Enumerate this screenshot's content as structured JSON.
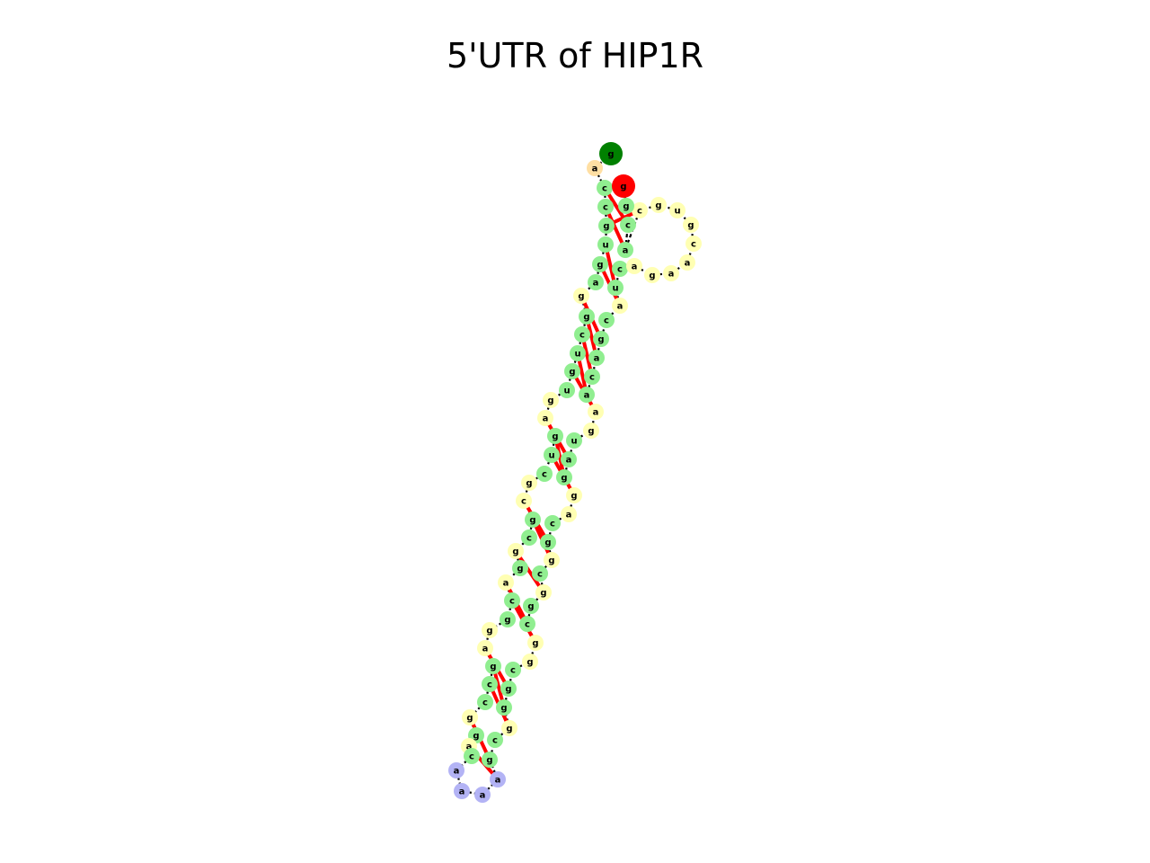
{
  "title": "5'UTR of HIP1R",
  "colors": {
    "stem": "#90ee90",
    "loop": "#ffffb3",
    "hairpin": "#b3b3f5",
    "dangling": "#ffdfa3",
    "five_prime": "#008000",
    "three_prime": "#ff0000",
    "backbone": "#000000",
    "pair": "#ff0000"
  },
  "nucleotides": [
    {
      "base": "g",
      "type": "five_prime"
    },
    {
      "base": "a",
      "type": "dangling"
    },
    {
      "base": "c",
      "type": "stem"
    },
    {
      "base": "c",
      "type": "stem"
    },
    {
      "base": "g",
      "type": "stem"
    },
    {
      "base": "u",
      "type": "stem"
    },
    {
      "base": "g",
      "type": "stem"
    },
    {
      "base": "a",
      "type": "stem"
    },
    {
      "base": "g",
      "type": "loop"
    },
    {
      "base": "g",
      "type": "stem"
    },
    {
      "base": "c",
      "type": "stem"
    },
    {
      "base": "u",
      "type": "stem"
    },
    {
      "base": "g",
      "type": "stem"
    },
    {
      "base": "u",
      "type": "stem"
    },
    {
      "base": "g",
      "type": "loop"
    },
    {
      "base": "a",
      "type": "loop"
    },
    {
      "base": "g",
      "type": "stem"
    },
    {
      "base": "u",
      "type": "stem"
    },
    {
      "base": "c",
      "type": "stem"
    },
    {
      "base": "g",
      "type": "loop"
    },
    {
      "base": "c",
      "type": "loop"
    },
    {
      "base": "g",
      "type": "stem"
    },
    {
      "base": "c",
      "type": "stem"
    },
    {
      "base": "g",
      "type": "loop"
    },
    {
      "base": "g",
      "type": "stem"
    },
    {
      "base": "a",
      "type": "loop"
    },
    {
      "base": "c",
      "type": "stem"
    },
    {
      "base": "g",
      "type": "stem"
    },
    {
      "base": "g",
      "type": "loop"
    },
    {
      "base": "a",
      "type": "loop"
    },
    {
      "base": "g",
      "type": "stem"
    },
    {
      "base": "c",
      "type": "stem"
    },
    {
      "base": "c",
      "type": "stem"
    },
    {
      "base": "g",
      "type": "loop"
    },
    {
      "base": "g",
      "type": "stem"
    },
    {
      "base": "a",
      "type": "loop"
    },
    {
      "base": "c",
      "type": "stem"
    },
    {
      "base": "a",
      "type": "hairpin"
    },
    {
      "base": "a",
      "type": "hairpin"
    },
    {
      "base": "a",
      "type": "hairpin"
    },
    {
      "base": "a",
      "type": "hairpin"
    },
    {
      "base": "g",
      "type": "stem"
    },
    {
      "base": "c",
      "type": "stem"
    },
    {
      "base": "g",
      "type": "loop"
    },
    {
      "base": "g",
      "type": "stem"
    },
    {
      "base": "g",
      "type": "stem"
    },
    {
      "base": "c",
      "type": "stem"
    },
    {
      "base": "g",
      "type": "loop"
    },
    {
      "base": "g",
      "type": "loop"
    },
    {
      "base": "c",
      "type": "stem"
    },
    {
      "base": "g",
      "type": "stem"
    },
    {
      "base": "g",
      "type": "loop"
    },
    {
      "base": "c",
      "type": "stem"
    },
    {
      "base": "g",
      "type": "loop"
    },
    {
      "base": "g",
      "type": "stem"
    },
    {
      "base": "c",
      "type": "stem"
    },
    {
      "base": "a",
      "type": "loop"
    },
    {
      "base": "g",
      "type": "loop"
    },
    {
      "base": "g",
      "type": "stem"
    },
    {
      "base": "a",
      "type": "stem"
    },
    {
      "base": "u",
      "type": "stem"
    },
    {
      "base": "g",
      "type": "loop"
    },
    {
      "base": "a",
      "type": "loop"
    },
    {
      "base": "a",
      "type": "stem"
    },
    {
      "base": "c",
      "type": "stem"
    },
    {
      "base": "a",
      "type": "stem"
    },
    {
      "base": "g",
      "type": "stem"
    },
    {
      "base": "c",
      "type": "stem"
    },
    {
      "base": "a",
      "type": "loop"
    },
    {
      "base": "u",
      "type": "stem"
    },
    {
      "base": "c",
      "type": "stem"
    },
    {
      "base": "a",
      "type": "loop"
    },
    {
      "base": "g",
      "type": "loop"
    },
    {
      "base": "a",
      "type": "loop"
    },
    {
      "base": "a",
      "type": "loop"
    },
    {
      "base": "c",
      "type": "loop"
    },
    {
      "base": "g",
      "type": "loop"
    },
    {
      "base": "u",
      "type": "loop"
    },
    {
      "base": "g",
      "type": "loop"
    },
    {
      "base": "c",
      "type": "loop"
    },
    {
      "base": "a",
      "type": "stem"
    },
    {
      "base": "c",
      "type": "stem"
    },
    {
      "base": "g",
      "type": "stem"
    },
    {
      "base": "g",
      "type": "three_prime"
    }
  ],
  "pairs": [
    [
      3,
      82
    ],
    [
      4,
      81
    ],
    [
      5,
      80
    ],
    [
      6,
      70
    ],
    [
      7,
      69
    ],
    [
      9,
      67
    ],
    [
      10,
      66
    ],
    [
      11,
      65
    ],
    [
      12,
      64
    ],
    [
      13,
      63
    ],
    [
      16,
      60
    ],
    [
      17,
      59
    ],
    [
      18,
      58
    ],
    [
      21,
      55
    ],
    [
      22,
      54
    ],
    [
      24,
      52
    ],
    [
      26,
      50
    ],
    [
      27,
      49
    ],
    [
      30,
      46
    ],
    [
      31,
      45
    ],
    [
      32,
      44
    ],
    [
      34,
      42
    ],
    [
      36,
      41
    ]
  ]
}
